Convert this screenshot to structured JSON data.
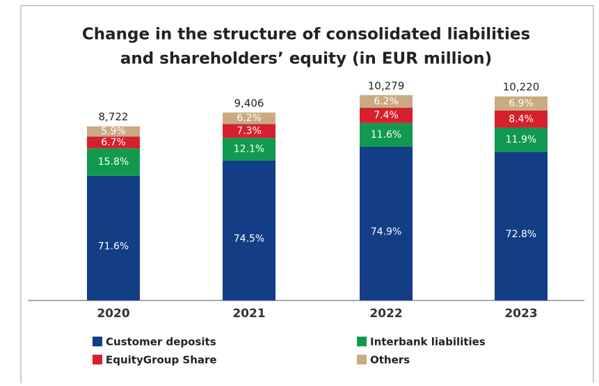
{
  "chart_data": {
    "type": "bar",
    "stacked": true,
    "title": "Change in the structure of consolidated liabilities",
    "subtitle": "and shareholders’ equity (in EUR million)",
    "categories": [
      "2020",
      "2021",
      "2022",
      "2023"
    ],
    "totals": {
      "values": [
        8722,
        9406,
        10279,
        10220
      ],
      "value_labels": [
        "8,722",
        "9,406",
        "10,279",
        "10,220"
      ]
    },
    "series": [
      {
        "name": "Customer deposits",
        "color": "#133e86",
        "values": [
          71.6,
          74.5,
          74.9,
          72.8
        ],
        "value_labels": [
          "71.6%",
          "74.5%",
          "74.9%",
          "72.8%"
        ]
      },
      {
        "name": "Interbank liabilities",
        "color": "#11994f",
        "values": [
          15.8,
          12.1,
          11.6,
          11.9
        ],
        "value_labels": [
          "15.8%",
          "12.1%",
          "11.6%",
          "11.9%"
        ]
      },
      {
        "name": "EquityGroup Share",
        "color": "#d6202e",
        "values": [
          6.7,
          7.3,
          7.4,
          8.4
        ],
        "value_labels": [
          "6.7%",
          "7.3%",
          "7.4%",
          "8.4%"
        ]
      },
      {
        "name": "Others",
        "color": "#c9aa83",
        "values": [
          5.9,
          6.2,
          6.2,
          6.9
        ],
        "value_labels": [
          "5.9%",
          "6.2%",
          "6.2%",
          "6.9%"
        ]
      }
    ]
  }
}
